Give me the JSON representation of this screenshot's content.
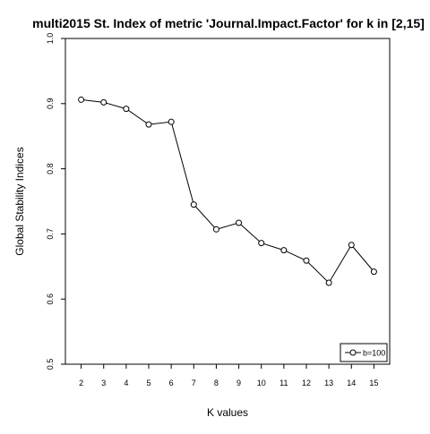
{
  "chart_data": {
    "type": "line",
    "title": "multi2015 St. Index of metric 'Journal.Impact.Factor' for k in [2,15]",
    "xlabel": "K values",
    "ylabel": "Global Stability Indices",
    "x": [
      2,
      3,
      4,
      5,
      6,
      7,
      8,
      9,
      10,
      11,
      12,
      13,
      14,
      15
    ],
    "xticks": [
      "2",
      "3",
      "4",
      "5",
      "6",
      "7",
      "8",
      "9",
      "10",
      "11",
      "12",
      "13",
      "14",
      "15"
    ],
    "yticks": [
      "0.5",
      "0.6",
      "0.7",
      "0.8",
      "0.9",
      "1.0"
    ],
    "ylim": [
      0.5,
      1.0
    ],
    "xlim": [
      1.3,
      15.7
    ],
    "grid": false,
    "legend_position": "bottom-right",
    "series": [
      {
        "name": "b=100",
        "values": [
          0.906,
          0.902,
          0.892,
          0.868,
          0.872,
          0.745,
          0.707,
          0.717,
          0.686,
          0.675,
          0.659,
          0.625,
          0.683,
          0.642
        ],
        "marker": "open-circle",
        "color": "#000000"
      }
    ]
  }
}
